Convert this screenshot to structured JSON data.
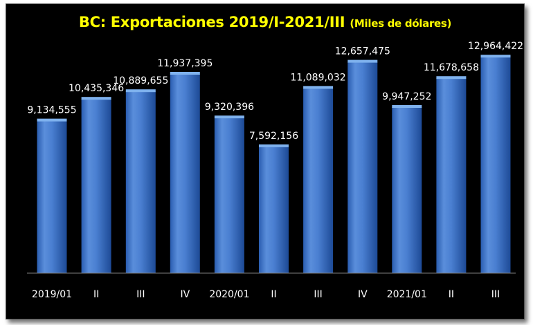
{
  "title": "BC: Exportaciones 2019/I-2021/III",
  "subtitle": "(Miles de dólares)",
  "chart_data": {
    "type": "bar",
    "title": "BC: Exportaciones 2019/I-2021/III",
    "subtitle": "(Miles de dólares)",
    "categories": [
      "2019/01",
      "II",
      "III",
      "IV",
      "2020/01",
      "II",
      "III",
      "IV",
      "2021/01",
      "II",
      "III"
    ],
    "values": [
      9134555,
      10435346,
      10889655,
      11937395,
      9320396,
      7592156,
      11089032,
      12657475,
      9947252,
      11678658,
      12964422
    ],
    "labels": [
      "9,134,555",
      "10,435,346",
      "10,889,655",
      "11,937,395",
      "9,320,396",
      "7,592,156",
      "11,089,032",
      "12,657,475",
      "9,947,252",
      "11,678,658",
      "12,964,422"
    ],
    "ylim": [
      0,
      15500000
    ],
    "grid": false,
    "legend": "none",
    "colors": {
      "background": "#000000",
      "title": "#ffff00",
      "bar_light": "#6f9fe0",
      "bar_mid": "#3c74c9",
      "bar_dark": "#1b4691",
      "bar_top": "#7fb2ee",
      "label": "#ffffff"
    }
  }
}
